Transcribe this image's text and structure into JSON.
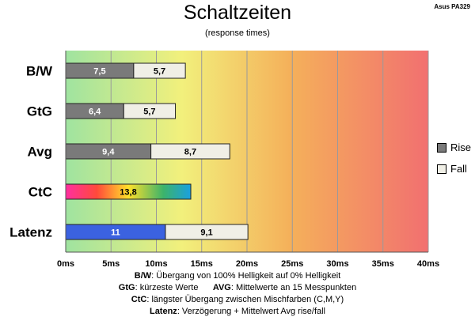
{
  "header": {
    "title": "Schaltzeiten",
    "subtitle": "(response times)",
    "brand": "Asus PA329"
  },
  "legend": [
    {
      "label": "Rise",
      "color": "#7a7a7a"
    },
    {
      "label": "Fall",
      "color": "#f0efe6"
    }
  ],
  "notes": [
    {
      "key": "B/W",
      "text": ":  Übergang von 100% Helligkeit auf 0% Helligkeit"
    },
    {
      "key": "GtG",
      "text": ": kürzeste  Werte",
      "key2": "AVG",
      "text2": ": Mittelwerte  an 15 Messpunkten"
    },
    {
      "key": "CtC",
      "text": ": längster Übergang  zwischen Mischfarben (C,M,Y)"
    },
    {
      "key": "Latenz",
      "text": ": Verzögerung  + Mittelwert Avg rise/fall"
    }
  ],
  "chart_data": {
    "type": "bar",
    "orientation": "horizontal",
    "stacked": true,
    "title": "Schaltzeiten",
    "subtitle": "(response times)",
    "categories": [
      "B/W",
      "GtG",
      "Avg",
      "CtC",
      "Latenz"
    ],
    "series": [
      {
        "name": "Rise",
        "values": [
          7.5,
          6.4,
          9.4,
          13.8,
          11
        ],
        "labels": [
          "7,5",
          "6,4",
          "9,4",
          "13,8",
          "11"
        ]
      },
      {
        "name": "Fall",
        "values": [
          5.7,
          5.7,
          8.7,
          null,
          9.1
        ],
        "labels": [
          "5,7",
          "5,7",
          "8,7",
          "",
          "9,1"
        ]
      }
    ],
    "xlim": [
      0,
      40
    ],
    "xticks": [
      "0ms",
      "5ms",
      "10ms",
      "15ms",
      "20ms",
      "25ms",
      "30ms",
      "35ms",
      "40ms"
    ],
    "xlabel": "",
    "ylabel": "",
    "grid": true,
    "legend_position": "right",
    "colors": {
      "rise": "#7a7a7a",
      "fall": "#f0efe6",
      "latenz_rise": "#3b62e0",
      "background_gradient": [
        "#9fe3a0",
        "#f5ef7a",
        "#f3a050",
        "#f07070"
      ]
    }
  }
}
